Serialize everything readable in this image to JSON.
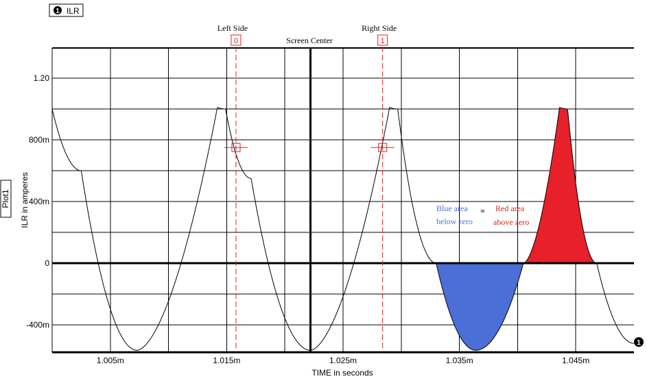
{
  "legend": {
    "marker": "1",
    "label": "ILR"
  },
  "plot_tag": "Plot1",
  "end_marker": "1",
  "cursors": [
    {
      "label": "Left Side",
      "index": "0",
      "time": 0.0010158,
      "value": 0.75
    },
    {
      "label": "Right Side",
      "index": "1",
      "time": 0.0010284,
      "value": 0.75
    }
  ],
  "screen_center_label": "Screen Center",
  "annotations": {
    "blue_line1": "Blue area",
    "blue_line2": "below zero",
    "equals": "=",
    "red_line1": "Red area",
    "red_line2": "above zero"
  },
  "chart_data": {
    "type": "line",
    "title": "",
    "xlabel": "TIME in seconds",
    "ylabel": "ILR in amperes",
    "xlim": [
      0.001,
      0.00105
    ],
    "ylim": [
      -0.58,
      1.4
    ],
    "x_ticks": [
      0.001005,
      0.001015,
      0.001025,
      0.001035,
      0.001045
    ],
    "x_tick_labels": [
      "1.005m",
      "1.015m",
      "1.025m",
      "1.035m",
      "1.045m"
    ],
    "y_ticks": [
      1.2,
      0.8,
      0.4,
      0,
      -0.4
    ],
    "y_tick_labels": [
      "1.20",
      "800m",
      "400m",
      "0",
      "-400m"
    ],
    "grid": true,
    "screen_center_x": 0.0010222,
    "series": [
      {
        "name": "ILR",
        "x": [
          0.001,
          0.0010025,
          0.0010073,
          0.0010142,
          0.0010149,
          0.0010171,
          0.0010222,
          0.001029,
          0.0010297,
          0.001033,
          0.0010364,
          0.0010405,
          0.0010436,
          0.0010443,
          0.0010468,
          0.00105
        ],
        "y": [
          1.0,
          0.6,
          -0.565,
          1.01,
          1.0,
          0.55,
          -0.565,
          1.01,
          1.0,
          0.0,
          -0.565,
          0.0,
          1.01,
          1.0,
          0.0,
          -0.52
        ]
      }
    ],
    "shaded_regions": [
      {
        "name": "below zero",
        "from": 0.001033,
        "to": 0.0010405,
        "color": "#4a6fd6"
      },
      {
        "name": "above zero",
        "from": 0.0010405,
        "to": 0.0010468,
        "color": "#e8202a"
      }
    ]
  }
}
